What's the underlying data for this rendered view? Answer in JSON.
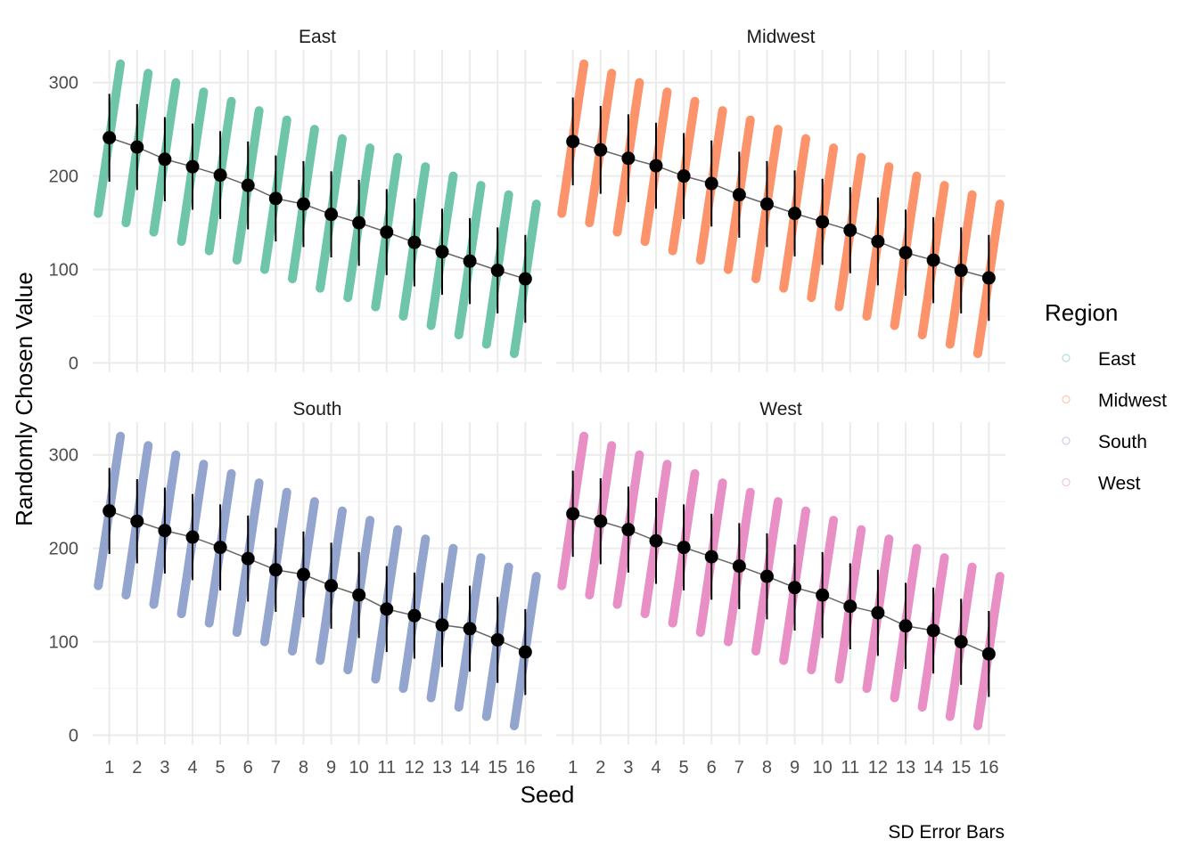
{
  "chart_data": {
    "type": "scatter",
    "subtype": "faceted-jitter-with-mean-and-sd-error-bars",
    "xlabel": "Seed",
    "ylabel": "Randomly Chosen Value",
    "caption": "SD Error Bars",
    "legend": {
      "title": "Region",
      "placement": "right",
      "entries": [
        "East",
        "Midwest",
        "South",
        "West"
      ]
    },
    "x": [
      1,
      2,
      3,
      4,
      5,
      6,
      7,
      8,
      9,
      10,
      11,
      12,
      13,
      14,
      15,
      16
    ],
    "x_ticks": [
      "1",
      "2",
      "3",
      "4",
      "5",
      "6",
      "7",
      "8",
      "9",
      "10",
      "11",
      "12",
      "13",
      "14",
      "15",
      "16"
    ],
    "y_ticks": [
      0,
      100,
      200,
      300
    ],
    "ylim": [
      -10,
      335
    ],
    "grid": true,
    "point_ranges": {
      "description": "raw values per seed span from min to max",
      "min": [
        160,
        150,
        140,
        130,
        120,
        110,
        100,
        90,
        80,
        70,
        60,
        50,
        40,
        30,
        20,
        10
      ],
      "max": [
        320,
        310,
        300,
        290,
        280,
        270,
        260,
        250,
        240,
        230,
        220,
        210,
        200,
        190,
        180,
        170
      ]
    },
    "facets": [
      {
        "name": "East",
        "color": "#66c2a5",
        "mean": [
          241,
          231,
          218,
          210,
          201,
          190,
          176,
          170,
          159,
          150,
          140,
          129,
          119,
          109,
          99,
          90
        ],
        "sd": [
          47,
          46,
          45,
          46,
          47,
          47,
          46,
          46,
          46,
          46,
          46,
          47,
          46,
          46,
          46,
          47
        ]
      },
      {
        "name": "Midwest",
        "color": "#fc8d62",
        "mean": [
          237,
          228,
          219,
          211,
          200,
          192,
          180,
          170,
          160,
          151,
          142,
          130,
          118,
          110,
          99,
          91
        ],
        "sd": [
          47,
          47,
          47,
          46,
          46,
          46,
          46,
          46,
          46,
          46,
          46,
          47,
          46,
          46,
          46,
          46
        ]
      },
      {
        "name": "South",
        "color": "#8da0cb",
        "mean": [
          240,
          229,
          219,
          212,
          201,
          189,
          177,
          172,
          160,
          150,
          135,
          128,
          118,
          114,
          102,
          89
        ],
        "sd": [
          46,
          45,
          46,
          46,
          46,
          46,
          45,
          46,
          46,
          46,
          46,
          46,
          45,
          46,
          46,
          46
        ]
      },
      {
        "name": "West",
        "color": "#e78ac3",
        "mean": [
          237,
          229,
          220,
          208,
          201,
          191,
          181,
          170,
          158,
          150,
          138,
          131,
          117,
          112,
          100,
          87
        ],
        "sd": [
          46,
          46,
          46,
          46,
          46,
          46,
          46,
          46,
          46,
          46,
          46,
          46,
          46,
          46,
          46,
          46
        ]
      }
    ]
  }
}
